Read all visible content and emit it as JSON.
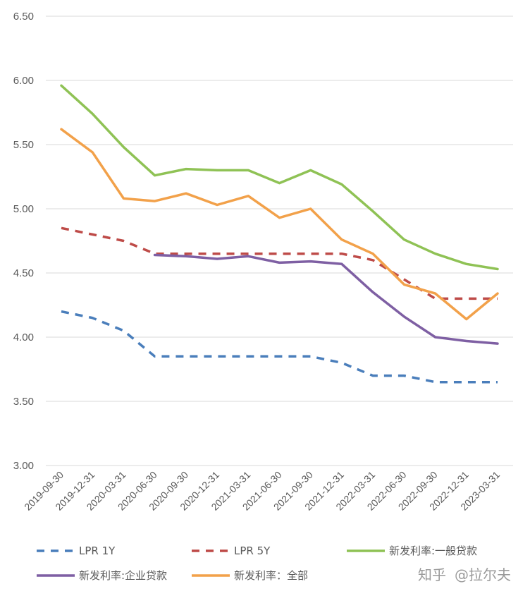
{
  "chart_data": {
    "type": "line",
    "title": "",
    "xlabel": "",
    "ylabel": "",
    "ylim": [
      3.0,
      6.5
    ],
    "yticks": [
      "3.00",
      "3.50",
      "4.00",
      "4.50",
      "5.00",
      "5.50",
      "6.00",
      "6.50"
    ],
    "categories": [
      "2019-09-30",
      "2019-12-31",
      "2020-03-31",
      "2020-06-30",
      "2020-09-30",
      "2020-12-31",
      "2021-03-31",
      "2021-06-30",
      "2021-09-30",
      "2021-12-31",
      "2022-03-31",
      "2022-06-30",
      "2022-09-30",
      "2022-12-31",
      "2023-03-31"
    ],
    "grid": "horizontal",
    "legend_position": "bottom",
    "series": [
      {
        "name": "LPR 1Y",
        "color": "#4a7ebb",
        "dash": "dashed",
        "values": [
          4.2,
          4.15,
          4.05,
          3.85,
          3.85,
          3.85,
          3.85,
          3.85,
          3.85,
          3.8,
          3.7,
          3.7,
          3.65,
          3.65,
          3.65
        ]
      },
      {
        "name": "LPR 5Y",
        "color": "#be4b48",
        "dash": "dashed",
        "values": [
          4.85,
          4.8,
          4.75,
          4.65,
          4.65,
          4.65,
          4.65,
          4.65,
          4.65,
          4.65,
          4.6,
          4.45,
          4.3,
          4.3,
          4.3
        ]
      },
      {
        "name": "新发利率:一般贷款",
        "color": "#8fc255",
        "dash": "solid",
        "values": [
          5.96,
          5.74,
          5.48,
          5.26,
          5.31,
          5.3,
          5.3,
          5.2,
          5.3,
          5.19,
          4.98,
          4.76,
          4.65,
          4.57,
          4.53
        ]
      },
      {
        "name": "新发利率:企业贷款",
        "color": "#7e5fa3",
        "dash": "solid",
        "values": [
          null,
          null,
          null,
          4.64,
          4.63,
          4.61,
          4.63,
          4.58,
          4.59,
          4.57,
          4.35,
          4.16,
          4.0,
          3.97,
          3.95
        ]
      },
      {
        "name": "新发利率：全部",
        "color": "#f2a14a",
        "dash": "solid",
        "values": [
          5.62,
          5.44,
          5.08,
          5.06,
          5.12,
          5.03,
          5.1,
          4.93,
          5.0,
          4.76,
          4.65,
          4.41,
          4.34,
          4.14,
          4.34
        ]
      }
    ]
  },
  "watermark": {
    "brand": "知乎",
    "author": "@拉尔夫"
  }
}
